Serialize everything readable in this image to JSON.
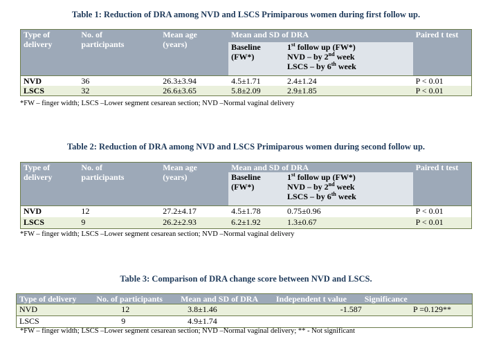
{
  "table1": {
    "caption": "Table 1: Reduction of DRA among NVD and LSCS Primiparous women during first follow up.",
    "headers": {
      "type": [
        "Type of",
        "delivery"
      ],
      "num": [
        "No. of",
        "participants"
      ],
      "age": [
        "Mean age",
        "(years)"
      ],
      "dra": "Mean and SD of DRA",
      "baseline": [
        "Baseline",
        "(FW*)"
      ],
      "fu_line1": "1st follow up (FW*)",
      "fu_line2": "NVD – by 2nd week",
      "fu_line3": "LSCS – by 6th week",
      "ttest": "Paired t test"
    },
    "rows": [
      {
        "type": "NVD",
        "n": "36",
        "age": "26.3±3.94",
        "baseline": "4.5±1.71",
        "fu": "2.4±1.24",
        "p": "P < 0.01"
      },
      {
        "type": "LSCS",
        "n": "32",
        "age": "26.6±3.65",
        "baseline": "5.8±2.09",
        "fu": "2.9±1.85",
        "p": "P < 0.01"
      }
    ],
    "note": "*FW – finger width; LSCS –Lower segment cesarean section; NVD –Normal vaginal delivery"
  },
  "table2": {
    "caption": "Table 2: Reduction of DRA among NVD and LSCS Primiparous women during second follow up.",
    "headers": {
      "type": [
        "Type of",
        "delivery"
      ],
      "num": [
        "No. of",
        "participants"
      ],
      "age": [
        "Mean age",
        "(years)"
      ],
      "dra": "Mean and SD of DRA",
      "baseline": [
        "Baseline",
        "(FW*)"
      ],
      "fu_line1": "1st follow up (FW*)",
      "fu_line2": "NVD – by 2nd week",
      "fu_line3": "LSCS – by 6th week",
      "ttest": "Paired t test"
    },
    "rows": [
      {
        "type": "NVD",
        "n": "12",
        "age": "27.2±4.17",
        "baseline": "4.5±1.78",
        "fu": "0.75±0.96",
        "p": "P < 0.01"
      },
      {
        "type": "LSCS",
        "n": "9",
        "age": "26.2±2.93",
        "baseline": "6.2±1.92",
        "fu": "1.3±0.67",
        "p": "P < 0.01"
      }
    ],
    "note": "*FW – finger width; LSCS –Lower segment cesarean section; NVD –Normal vaginal delivery"
  },
  "table3": {
    "caption": "Table 3: Comparison of DRA change score between NVD and LSCS.",
    "headers": [
      "Type of delivery",
      "No. of participants",
      "Mean and SD of DRA",
      "Independent t value",
      "Significance"
    ],
    "rows": [
      {
        "type": "NVD",
        "n": "12",
        "mean": "3.8±1.46",
        "t": "-1.587",
        "sig": "P =0.129**"
      },
      {
        "type": "LSCS",
        "n": "9",
        "mean": "4.9±1.74",
        "t": "",
        "sig": ""
      }
    ],
    "note": "*FW – finger width; LSCS –Lower segment cesarean section; NVD –Normal vaginal delivery; ** - Not significant"
  },
  "colors": {
    "header_bg": "#9da9b8",
    "subheader_bg": "#dfe4ea",
    "row_alt_bg": "#eaf0dc",
    "caption": "#1f3a5a"
  }
}
